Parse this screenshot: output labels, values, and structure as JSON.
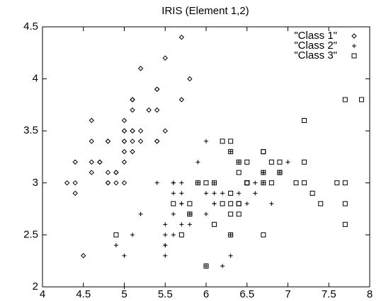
{
  "chart_data": {
    "type": "scatter",
    "title": "IRIS (Element 1,2)",
    "xlim": [
      4,
      8
    ],
    "xticks": [
      4,
      4.5,
      5,
      5.5,
      6,
      6.5,
      7,
      7.5,
      8
    ],
    "ylim": [
      2,
      4.5
    ],
    "yticks": [
      2,
      2.5,
      3,
      3.5,
      4,
      4.5
    ],
    "legend": "upper right",
    "series": [
      {
        "name": "\"Class 1\"",
        "marker": "diamond",
        "color": "#000000",
        "x": [
          5.1,
          4.9,
          4.7,
          4.6,
          5.0,
          5.4,
          4.6,
          5.0,
          4.4,
          4.9,
          5.4,
          4.8,
          4.8,
          4.3,
          5.8,
          5.7,
          5.4,
          5.1,
          5.7,
          5.1,
          5.4,
          5.1,
          4.6,
          5.1,
          4.8,
          5.0,
          5.0,
          5.2,
          5.2,
          4.7,
          4.8,
          5.4,
          5.2,
          5.5,
          4.9,
          5.0,
          5.5,
          4.9,
          4.4,
          5.1,
          5.0,
          4.5,
          4.4,
          5.0,
          5.1,
          4.8,
          5.1,
          4.6,
          5.3,
          5.0
        ],
        "values": [
          3.5,
          3.0,
          3.2,
          3.1,
          3.6,
          3.9,
          3.4,
          3.4,
          2.9,
          3.1,
          3.7,
          3.4,
          3.0,
          3.0,
          4.0,
          4.4,
          3.9,
          3.5,
          3.8,
          3.8,
          3.4,
          3.7,
          3.6,
          3.3,
          3.4,
          3.0,
          3.4,
          3.5,
          3.4,
          3.2,
          3.1,
          3.4,
          4.1,
          4.2,
          3.1,
          3.2,
          3.5,
          3.1,
          3.0,
          3.4,
          3.5,
          2.3,
          3.2,
          3.5,
          3.8,
          3.0,
          3.8,
          3.2,
          3.7,
          3.3
        ]
      },
      {
        "name": "\"Class 2\"",
        "marker": "plus",
        "color": "#000000",
        "x": [
          7.0,
          6.4,
          6.9,
          5.5,
          6.5,
          5.7,
          6.3,
          4.9,
          6.6,
          5.2,
          5.0,
          5.9,
          6.0,
          6.1,
          5.6,
          6.7,
          5.6,
          5.8,
          6.2,
          5.6,
          5.9,
          6.1,
          6.3,
          6.1,
          6.4,
          6.6,
          6.8,
          6.7,
          6.0,
          5.7,
          5.5,
          5.5,
          5.8,
          6.0,
          5.4,
          6.0,
          6.7,
          6.3,
          5.6,
          5.5,
          5.5,
          6.1,
          5.8,
          5.0,
          5.6,
          5.7,
          5.7,
          6.2,
          5.1,
          5.7
        ],
        "values": [
          3.2,
          3.2,
          3.1,
          2.3,
          2.8,
          2.8,
          3.3,
          2.4,
          2.9,
          2.7,
          2.0,
          3.0,
          2.2,
          2.9,
          2.9,
          3.1,
          3.0,
          2.7,
          2.2,
          2.5,
          3.2,
          2.8,
          2.5,
          2.8,
          2.9,
          3.0,
          2.8,
          3.0,
          2.9,
          2.6,
          2.4,
          2.4,
          2.7,
          2.7,
          3.0,
          3.4,
          3.1,
          2.3,
          3.0,
          2.5,
          2.6,
          3.0,
          2.6,
          2.3,
          2.7,
          3.0,
          2.9,
          2.9,
          2.5,
          2.8
        ]
      },
      {
        "name": "\"Class 3\"",
        "marker": "square",
        "color": "#000000",
        "x": [
          6.3,
          5.8,
          7.1,
          6.3,
          6.5,
          7.6,
          4.9,
          7.3,
          6.7,
          7.2,
          6.5,
          6.4,
          6.8,
          5.7,
          5.8,
          6.4,
          6.5,
          7.7,
          7.7,
          6.0,
          6.9,
          5.6,
          7.7,
          6.3,
          6.7,
          7.2,
          6.2,
          6.1,
          6.4,
          7.2,
          7.4,
          7.9,
          6.4,
          6.3,
          6.1,
          7.7,
          6.3,
          6.4,
          6.0,
          6.9,
          6.7,
          6.9,
          5.8,
          6.8,
          6.7,
          6.7,
          6.3,
          6.5,
          6.2,
          5.9
        ],
        "values": [
          3.3,
          2.7,
          3.0,
          2.9,
          3.0,
          3.0,
          2.5,
          2.9,
          2.5,
          3.6,
          3.2,
          2.7,
          3.0,
          2.5,
          2.8,
          3.2,
          3.0,
          3.8,
          2.6,
          2.2,
          3.2,
          2.8,
          2.8,
          2.7,
          3.3,
          3.2,
          2.8,
          3.0,
          2.8,
          3.0,
          2.8,
          3.8,
          2.8,
          2.8,
          2.6,
          3.0,
          3.4,
          3.1,
          3.0,
          3.1,
          3.1,
          3.1,
          2.7,
          3.2,
          3.3,
          3.0,
          2.5,
          3.0,
          3.4,
          3.0
        ]
      }
    ]
  }
}
